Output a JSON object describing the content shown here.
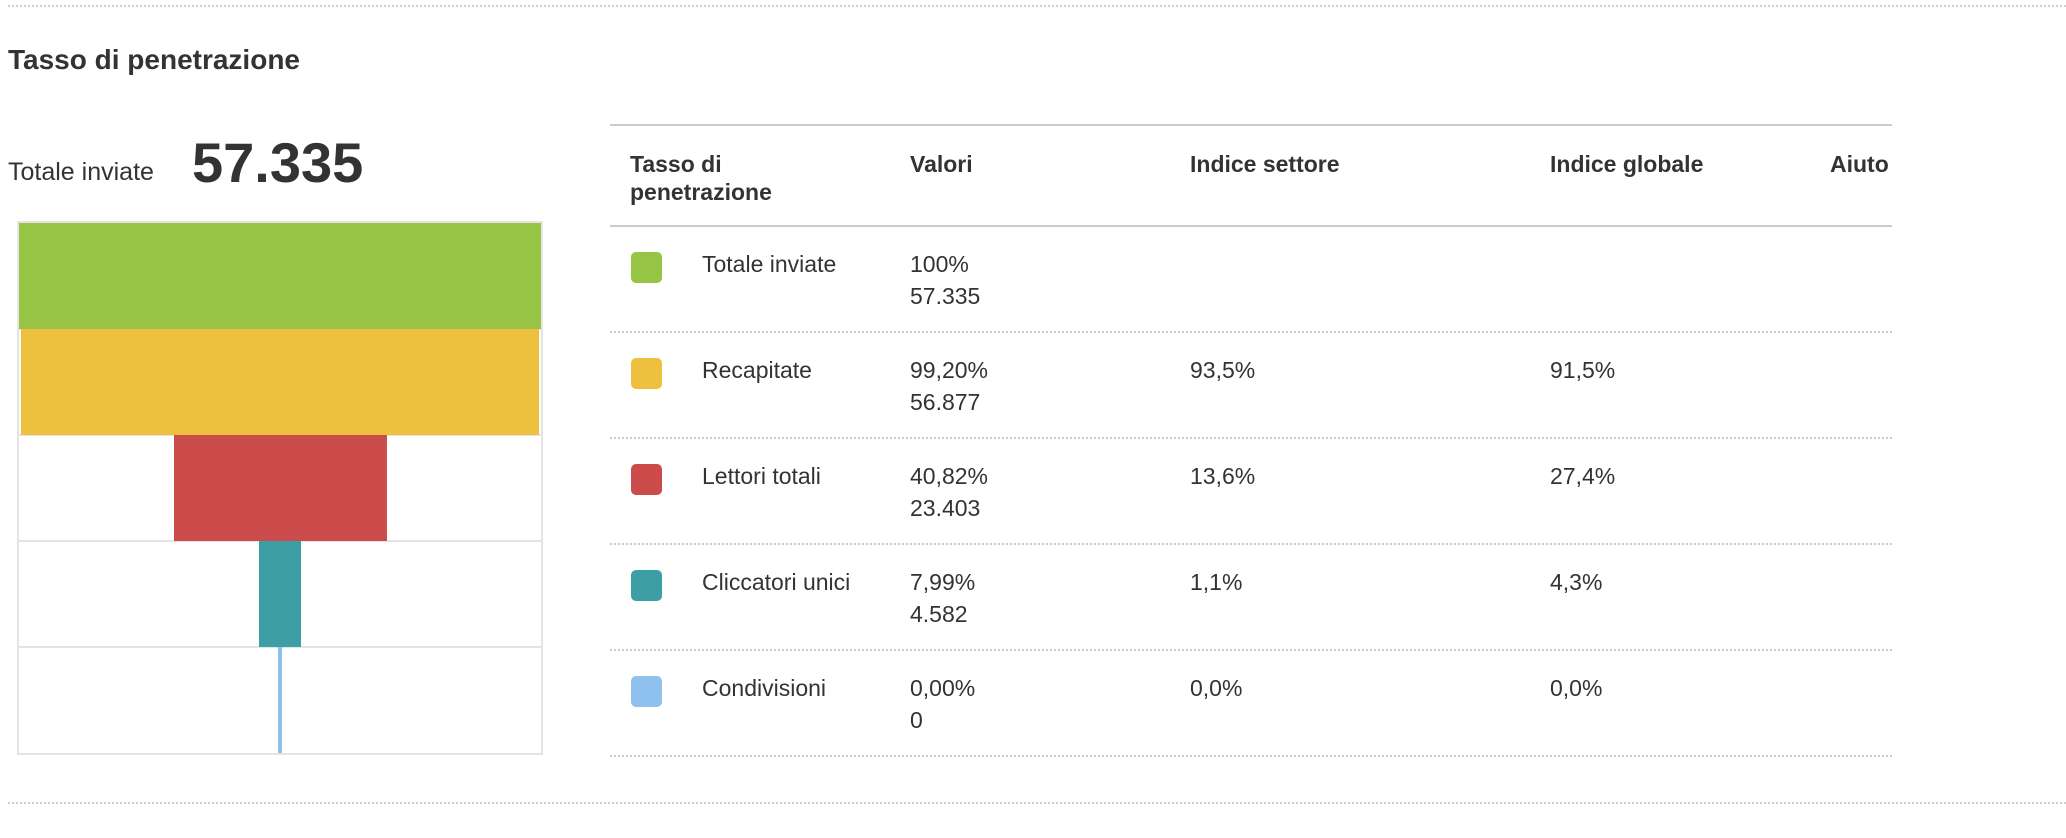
{
  "section_title": "Tasso di penetrazione",
  "total": {
    "label": "Totale inviate",
    "value": "57.335"
  },
  "table": {
    "headers": {
      "metric_line1": "Tasso di",
      "metric_line2": "penetrazione",
      "values": "Valori",
      "sector": "Indice settore",
      "global": "Indice globale",
      "help": "Aiuto"
    },
    "rows": [
      {
        "label": "Totale inviate",
        "pct": "100%",
        "count": "57.335",
        "sector": "",
        "global": "",
        "color": "#97c445"
      },
      {
        "label": "Recapitate",
        "pct": "99,20%",
        "count": "56.877",
        "sector": "93,5%",
        "global": "91,5%",
        "color": "#efc03d"
      },
      {
        "label": "Lettori totali",
        "pct": "40,82%",
        "count": "23.403",
        "sector": "13,6%",
        "global": "27,4%",
        "color": "#cc4b4b"
      },
      {
        "label": "Cliccatori unici",
        "pct": "7,99%",
        "count": "4.582",
        "sector": "1,1%",
        "global": "4,3%",
        "color": "#3d9ea6"
      },
      {
        "label": "Condivisioni",
        "pct": "0,00%",
        "count": "0",
        "sector": "0,0%",
        "global": "0,0%",
        "color": "#8fc1ef"
      }
    ]
  },
  "chart_data": {
    "type": "bar",
    "categories": [
      "Totale inviate",
      "Recapitate",
      "Lettori totali",
      "Cliccatori unici",
      "Condivisioni"
    ],
    "values": [
      100,
      99.2,
      40.82,
      7.99,
      0.0
    ],
    "counts": [
      57335,
      56877,
      23403,
      4582,
      0
    ],
    "colors": [
      "#97c445",
      "#efc03d",
      "#cc4b4b",
      "#3d9ea6",
      "#8fc1ef"
    ],
    "xlabel": "",
    "ylabel": "",
    "grid": true
  }
}
